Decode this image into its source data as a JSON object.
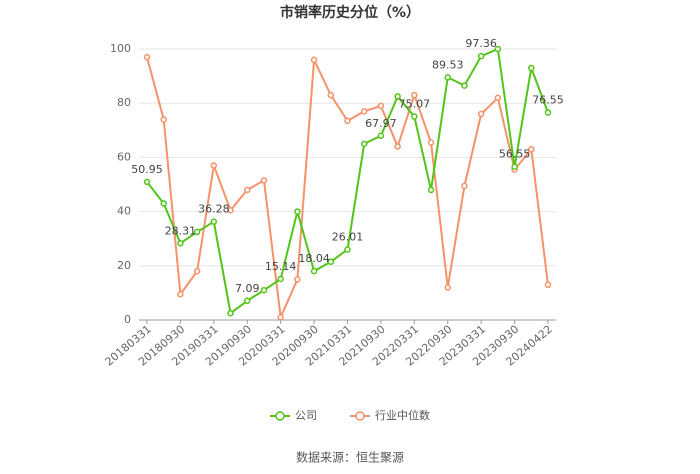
{
  "chart_data": {
    "type": "line",
    "title": "市销率历史分位（%）",
    "categories": [
      "20180331",
      null,
      "20180930",
      null,
      "20190331",
      null,
      "20190930",
      null,
      "20200331",
      null,
      "20200930",
      null,
      "20210331",
      null,
      "20210930",
      null,
      "20220331",
      null,
      "20220930",
      null,
      "20230331",
      null,
      "20230930",
      null,
      "20240422"
    ],
    "series": [
      {
        "name": "公司",
        "color": "#52c41a",
        "values": [
          50.95,
          43,
          28.31,
          32.5,
          36.28,
          2.5,
          7.09,
          11,
          15.14,
          40,
          18.04,
          21.5,
          26.01,
          65,
          67.97,
          82.5,
          75.07,
          48,
          89.53,
          86.5,
          97.36,
          100,
          56.55,
          93,
          76.55
        ]
      },
      {
        "name": "行业中位数",
        "color": "#f4926a",
        "values": [
          97,
          74,
          9.5,
          18,
          57,
          40.5,
          48,
          51.5,
          1,
          15,
          96,
          83,
          73.5,
          77,
          79,
          64,
          83,
          65.5,
          12,
          49.5,
          76,
          82,
          55.5,
          63,
          13
        ]
      }
    ],
    "ylim": [
      0,
      100
    ],
    "yticks": [
      0,
      20,
      40,
      60,
      80,
      100
    ],
    "grid": true,
    "source": "数据来源：恒生聚源"
  }
}
